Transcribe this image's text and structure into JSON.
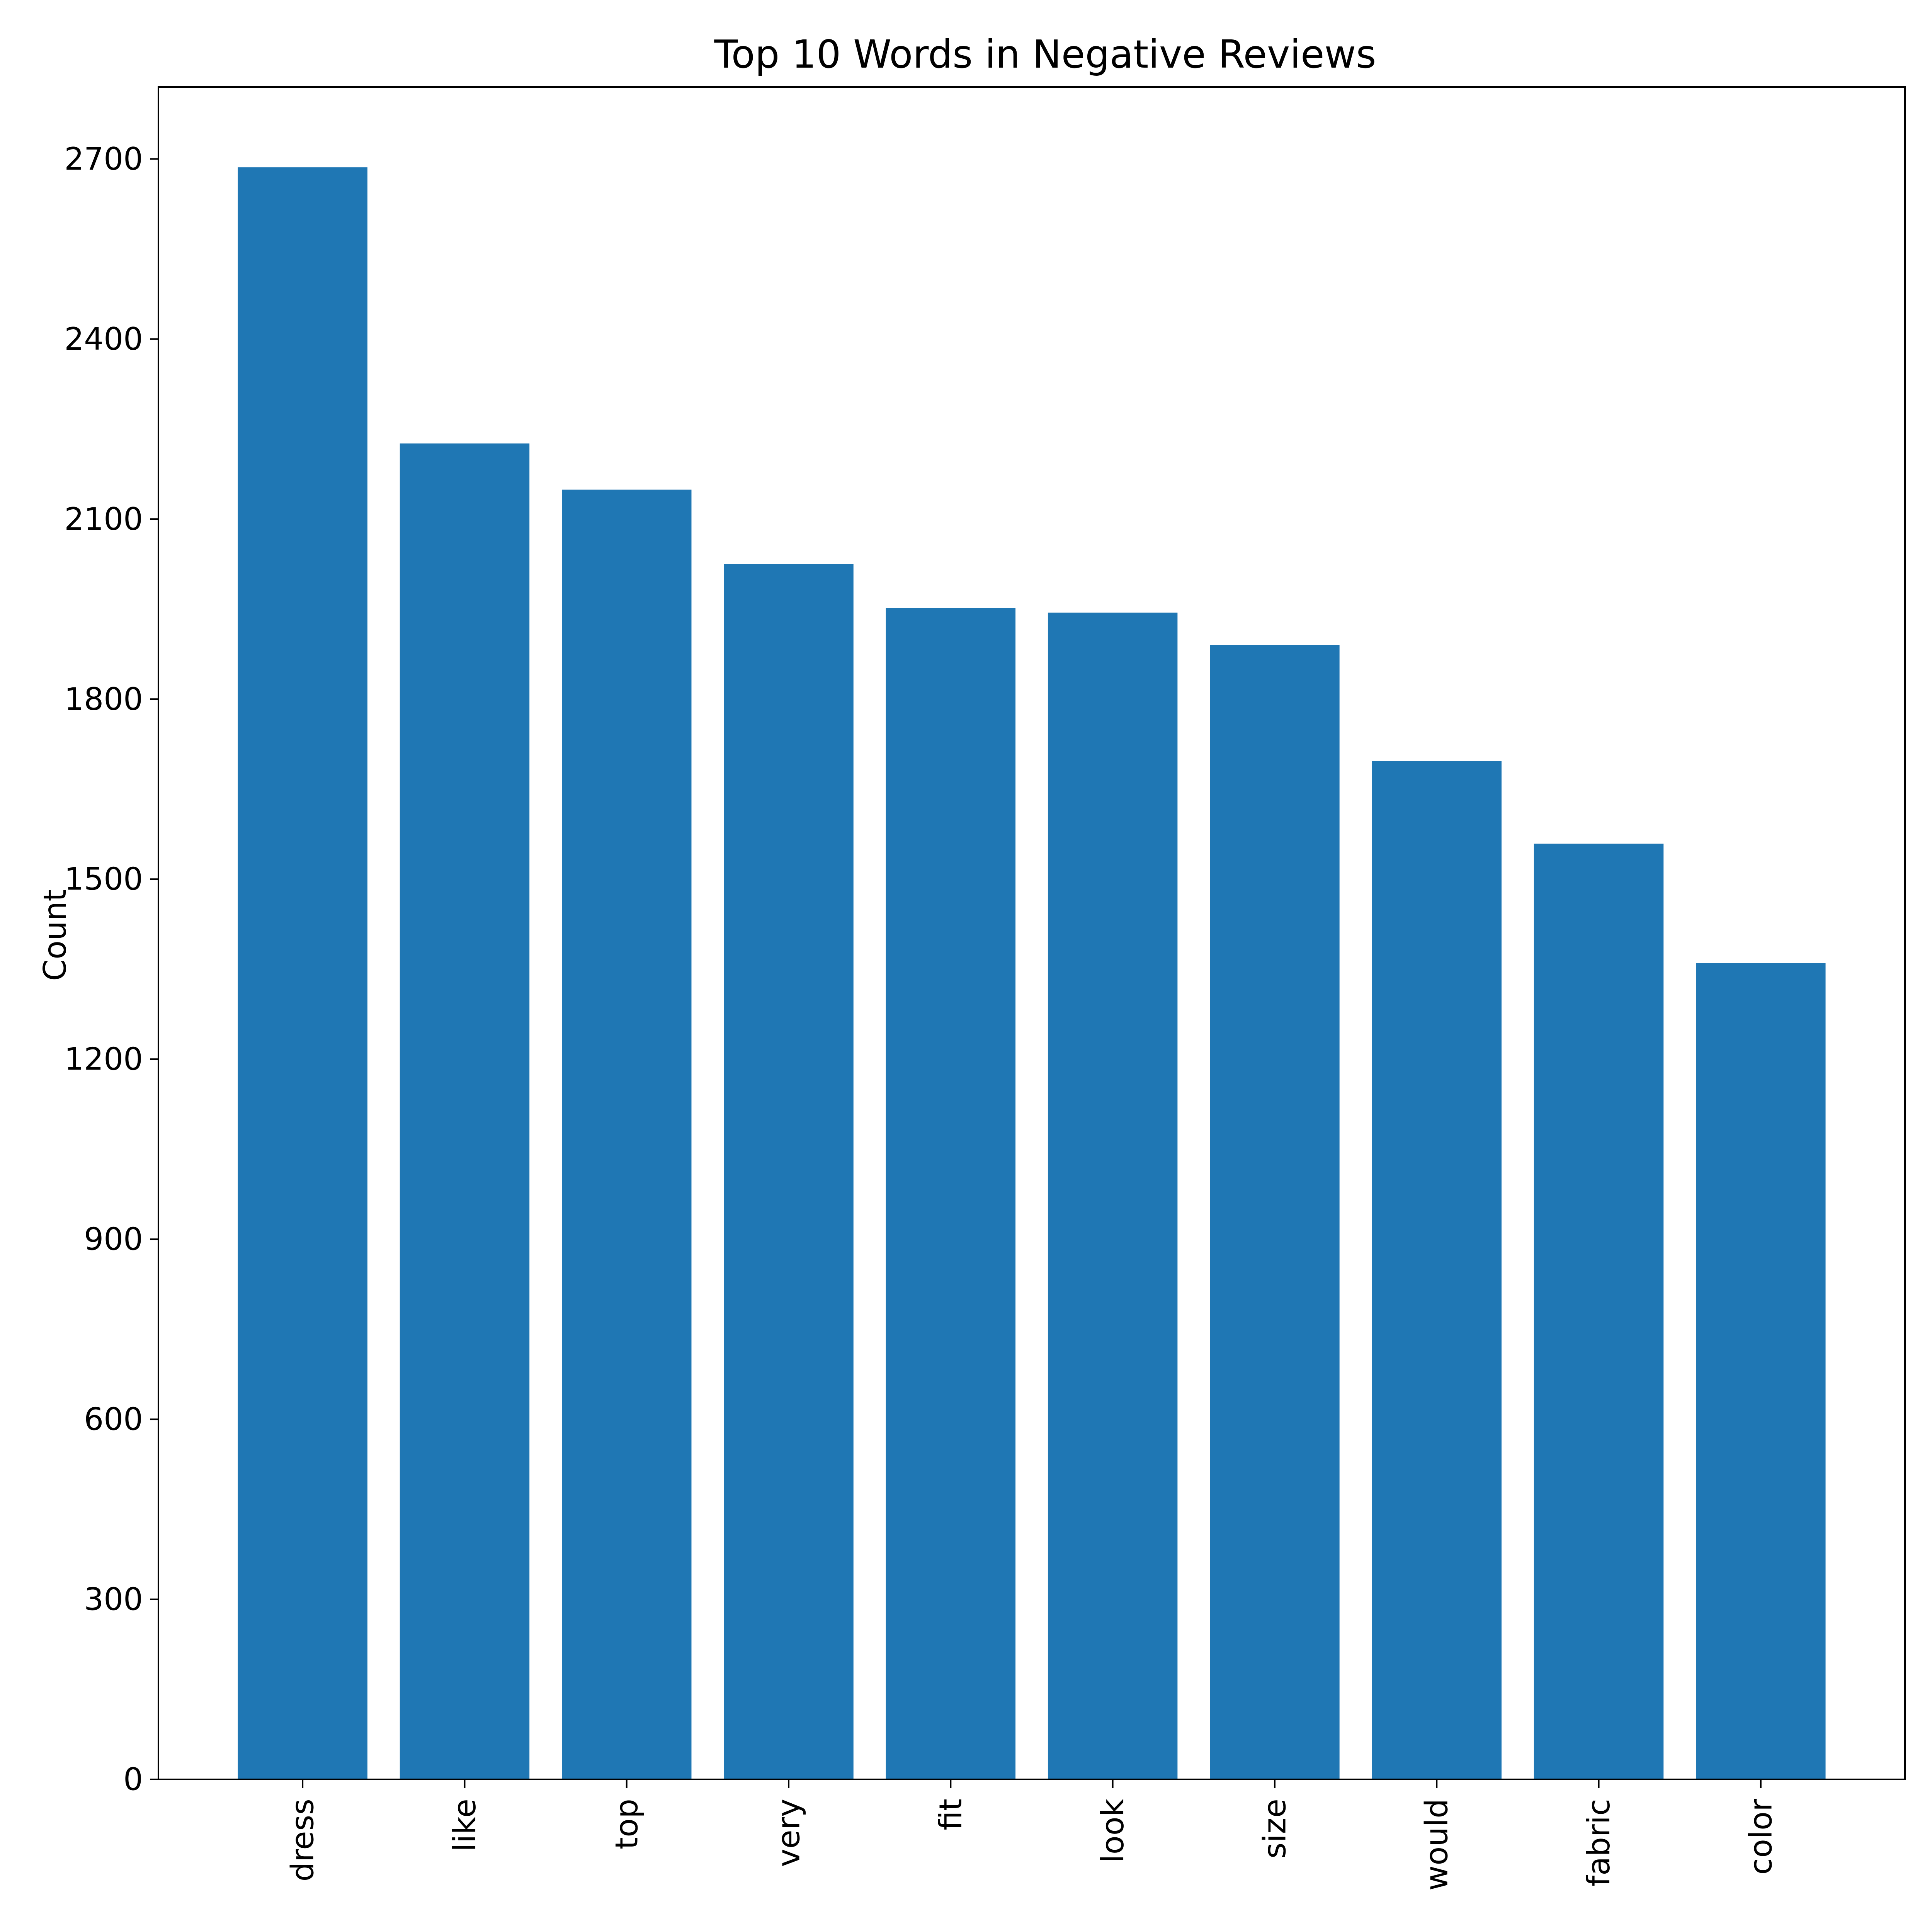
{
  "chart_data": {
    "type": "bar",
    "title": "Top 10 Words in Negative Reviews",
    "xlabel": "",
    "ylabel": "Count",
    "categories": [
      "dress",
      "like",
      "top",
      "very",
      "fit",
      "look",
      "size",
      "would",
      "fabric",
      "color"
    ],
    "values": [
      2686,
      2226,
      2149,
      2025,
      1952,
      1944,
      1890,
      1697,
      1559,
      1360
    ],
    "ylim": [
      0,
      2820
    ],
    "yticks": [
      0,
      300,
      600,
      900,
      1200,
      1500,
      1800,
      2100,
      2400,
      2700
    ],
    "bar_color": "#1f77b4",
    "grid": false,
    "legend": "none"
  }
}
